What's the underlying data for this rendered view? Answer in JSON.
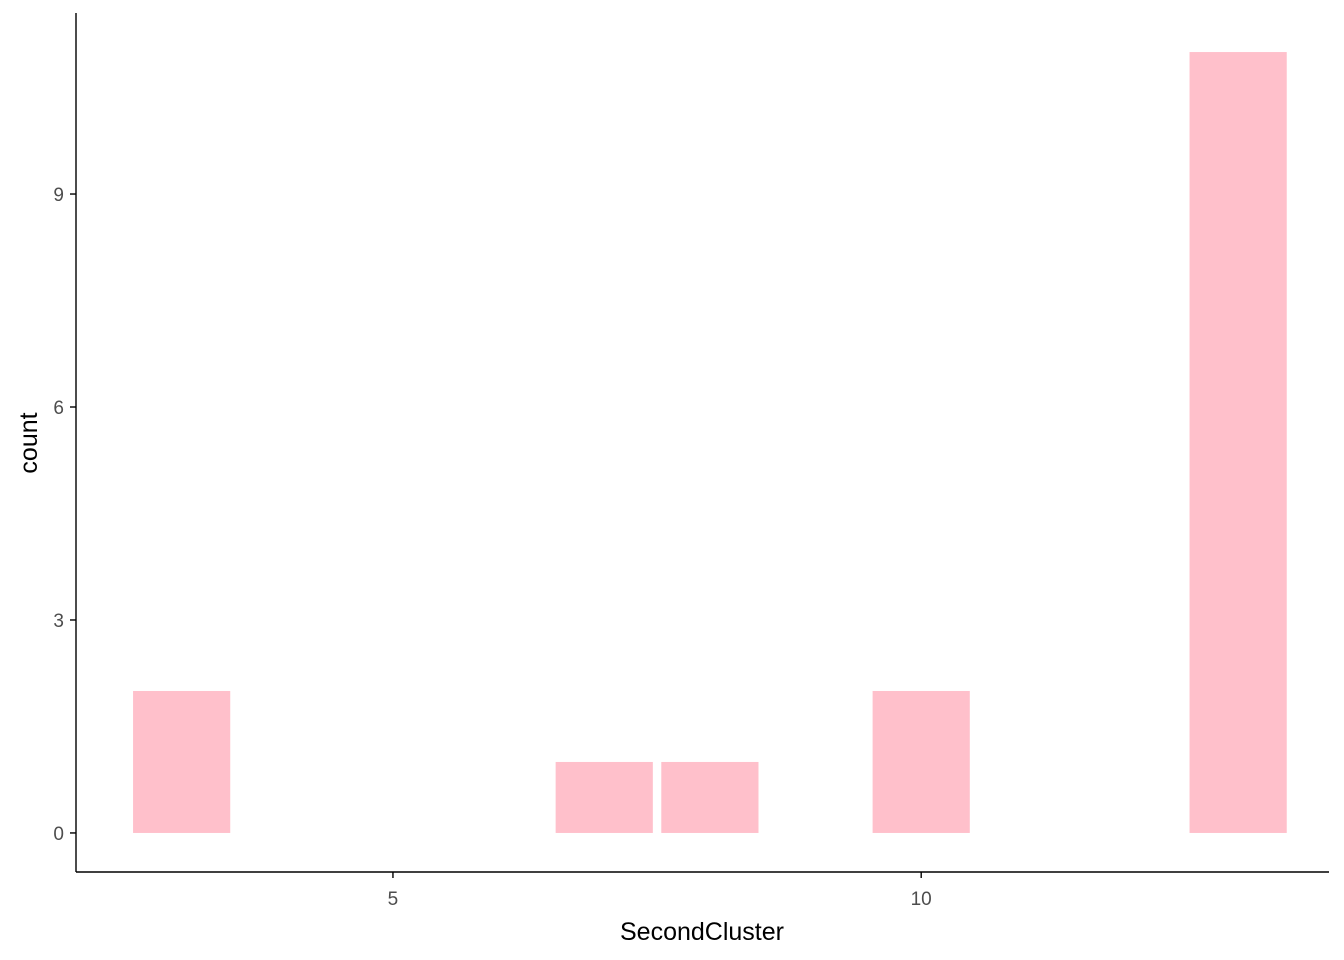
{
  "chart_data": {
    "type": "bar",
    "title": "",
    "xlabel": "SecondCluster",
    "ylabel": "count",
    "bar_width": 0.92,
    "bars": [
      {
        "x": 3,
        "value": 2
      },
      {
        "x": 7,
        "value": 1
      },
      {
        "x": 8,
        "value": 1
      },
      {
        "x": 10,
        "value": 2
      },
      {
        "x": 13,
        "value": 11
      }
    ],
    "xlim": [
      2.0,
      13.86
    ],
    "ylim": [
      -0.55,
      11.55
    ],
    "x_ticks": [
      5,
      10
    ],
    "y_ticks": [
      0,
      3,
      6,
      9
    ],
    "grid": false,
    "legend": "none",
    "bar_color": "#FFC0CB",
    "axis_color": "#000000",
    "tick_label_color": "#4D4D4D"
  }
}
